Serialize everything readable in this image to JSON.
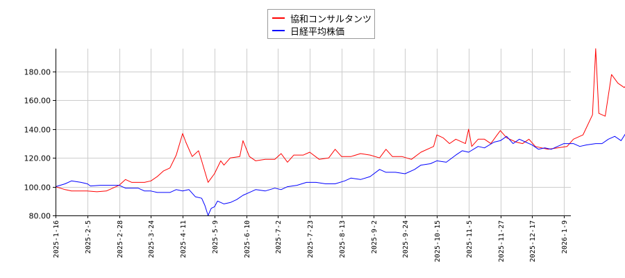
{
  "chart_data": {
    "type": "line",
    "title": "",
    "xlabel": "",
    "ylabel": "",
    "ylim": [
      80,
      196
    ],
    "grid": true,
    "legend_position": "top-center",
    "y_ticks": [
      "80.00",
      "100.00",
      "120.00",
      "140.00",
      "160.00",
      "180.00"
    ],
    "x_tick_labels": [
      "2025-1-16",
      "2025-2-5",
      "2025-2-28",
      "2025-3-24",
      "2025-4-11",
      "2025-5-9",
      "2025-6-10",
      "2025-7-2",
      "2025-7-23",
      "2025-8-13",
      "2025-9-2",
      "2025-9-24",
      "2025-10-15",
      "2025-11-5",
      "2025-11-27",
      "2025-12-17",
      "2026-1-9"
    ],
    "series": [
      {
        "name": "協和コンサルタンツ",
        "color": "#ff0000",
        "points": [
          [
            0,
            100
          ],
          [
            0.3,
            98
          ],
          [
            0.5,
            97
          ],
          [
            1,
            97
          ],
          [
            1.3,
            96.5
          ],
          [
            1.6,
            97
          ],
          [
            2,
            101
          ],
          [
            2.2,
            105
          ],
          [
            2.4,
            103
          ],
          [
            2.6,
            103
          ],
          [
            2.8,
            103
          ],
          [
            3,
            104
          ],
          [
            3.2,
            107
          ],
          [
            3.4,
            111
          ],
          [
            3.6,
            113
          ],
          [
            3.8,
            122
          ],
          [
            4.0,
            137
          ],
          [
            4.1,
            131
          ],
          [
            4.3,
            121
          ],
          [
            4.5,
            125
          ],
          [
            4.6,
            118
          ],
          [
            4.8,
            103
          ],
          [
            5.0,
            109
          ],
          [
            5.2,
            118
          ],
          [
            5.3,
            115
          ],
          [
            5.5,
            120
          ],
          [
            5.8,
            121
          ],
          [
            5.9,
            132
          ],
          [
            6.1,
            121
          ],
          [
            6.3,
            118
          ],
          [
            6.6,
            119
          ],
          [
            6.9,
            119
          ],
          [
            7.1,
            123
          ],
          [
            7.3,
            117
          ],
          [
            7.5,
            122
          ],
          [
            7.8,
            122
          ],
          [
            8.0,
            124
          ],
          [
            8.3,
            119
          ],
          [
            8.6,
            120
          ],
          [
            8.8,
            126
          ],
          [
            9.0,
            121
          ],
          [
            9.3,
            121
          ],
          [
            9.6,
            123
          ],
          [
            9.9,
            122
          ],
          [
            10.2,
            120
          ],
          [
            10.4,
            126
          ],
          [
            10.6,
            121
          ],
          [
            10.9,
            121
          ],
          [
            11.2,
            119
          ],
          [
            11.5,
            124
          ],
          [
            11.9,
            128
          ],
          [
            12.0,
            136
          ],
          [
            12.2,
            134
          ],
          [
            12.4,
            130
          ],
          [
            12.6,
            133
          ],
          [
            12.9,
            130
          ],
          [
            13.0,
            140
          ],
          [
            13.1,
            128
          ],
          [
            13.3,
            133
          ],
          [
            13.5,
            133
          ],
          [
            13.7,
            130
          ],
          [
            13.9,
            136
          ],
          [
            14.0,
            139
          ],
          [
            14.2,
            134
          ],
          [
            14.5,
            131
          ],
          [
            14.7,
            130
          ],
          [
            14.9,
            133
          ],
          [
            15.1,
            128
          ],
          [
            15.3,
            127
          ],
          [
            15.5,
            126
          ],
          [
            15.8,
            127
          ],
          [
            16.1,
            128
          ],
          [
            16.3,
            133
          ],
          [
            16.6,
            136
          ],
          [
            16.9,
            150
          ],
          [
            17.0,
            196
          ],
          [
            17.1,
            151
          ],
          [
            17.3,
            149
          ],
          [
            17.5,
            178
          ],
          [
            17.7,
            172
          ],
          [
            17.9,
            169
          ],
          [
            18.1,
            174
          ],
          [
            18.2,
            181
          ]
        ]
      },
      {
        "name": "日経平均株価",
        "color": "#0000ff",
        "points": [
          [
            0,
            100
          ],
          [
            0.3,
            102
          ],
          [
            0.5,
            104
          ],
          [
            0.8,
            103
          ],
          [
            1,
            102
          ],
          [
            1.1,
            100.5
          ],
          [
            1.4,
            101
          ],
          [
            1.7,
            101
          ],
          [
            2,
            101
          ],
          [
            2.2,
            99
          ],
          [
            2.4,
            99
          ],
          [
            2.6,
            99
          ],
          [
            2.8,
            97
          ],
          [
            3.0,
            97
          ],
          [
            3.2,
            96
          ],
          [
            3.4,
            96
          ],
          [
            3.6,
            96
          ],
          [
            3.8,
            98
          ],
          [
            4.0,
            97
          ],
          [
            4.2,
            98
          ],
          [
            4.4,
            93
          ],
          [
            4.6,
            92
          ],
          [
            4.7,
            87
          ],
          [
            4.8,
            80
          ],
          [
            4.9,
            85
          ],
          [
            5.0,
            86
          ],
          [
            5.1,
            90
          ],
          [
            5.3,
            88
          ],
          [
            5.5,
            89
          ],
          [
            5.7,
            91
          ],
          [
            5.9,
            94
          ],
          [
            6.1,
            96
          ],
          [
            6.3,
            98
          ],
          [
            6.6,
            97
          ],
          [
            6.9,
            99
          ],
          [
            7.1,
            98
          ],
          [
            7.3,
            100
          ],
          [
            7.6,
            101
          ],
          [
            7.9,
            103
          ],
          [
            8.2,
            103
          ],
          [
            8.5,
            102
          ],
          [
            8.8,
            102
          ],
          [
            9.1,
            104
          ],
          [
            9.3,
            106
          ],
          [
            9.6,
            105
          ],
          [
            9.9,
            107
          ],
          [
            10.2,
            112
          ],
          [
            10.4,
            110
          ],
          [
            10.7,
            110
          ],
          [
            11.0,
            109
          ],
          [
            11.3,
            112
          ],
          [
            11.5,
            115
          ],
          [
            11.8,
            116
          ],
          [
            12.0,
            118
          ],
          [
            12.3,
            117
          ],
          [
            12.6,
            122
          ],
          [
            12.8,
            125
          ],
          [
            13.0,
            124
          ],
          [
            13.3,
            128
          ],
          [
            13.5,
            127
          ],
          [
            13.8,
            131
          ],
          [
            14.0,
            132
          ],
          [
            14.2,
            135
          ],
          [
            14.4,
            130
          ],
          [
            14.6,
            133
          ],
          [
            14.8,
            131
          ],
          [
            15.0,
            129
          ],
          [
            15.2,
            126
          ],
          [
            15.4,
            127
          ],
          [
            15.6,
            126
          ],
          [
            15.8,
            128
          ],
          [
            16.0,
            130
          ],
          [
            16.3,
            130
          ],
          [
            16.5,
            128
          ],
          [
            16.7,
            129
          ],
          [
            17.0,
            130
          ],
          [
            17.2,
            130
          ],
          [
            17.4,
            133
          ],
          [
            17.6,
            135
          ],
          [
            17.8,
            132
          ],
          [
            18.0,
            139
          ],
          [
            18.2,
            140
          ]
        ]
      }
    ]
  },
  "legend": {
    "items": [
      {
        "label": "協和コンサルタンツ",
        "color": "#ff0000"
      },
      {
        "label": "日経平均株価",
        "color": "#0000ff"
      }
    ]
  }
}
